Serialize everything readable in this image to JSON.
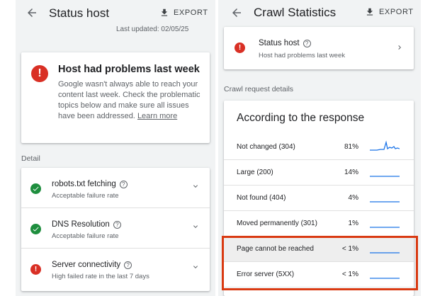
{
  "left": {
    "title": "Status host",
    "export_label": "EXPORT",
    "last_updated": "Last updated: 02/05/25",
    "problem": {
      "title": "Host had problems last week",
      "body": "Google wasn't always able to reach your content last week. Check the problematic topics below and make sure all issues have been addressed.",
      "link": "Learn more"
    },
    "section_label": "Detail",
    "details": [
      {
        "title": "robots.txt fetching",
        "subtitle": "Acceptable failure rate",
        "status": "ok"
      },
      {
        "title": "DNS Resolution",
        "subtitle": "Acceptable failure rate",
        "status": "ok"
      },
      {
        "title": "Server connectivity",
        "subtitle": "High failed rate in the last 7 days",
        "status": "error"
      }
    ]
  },
  "right": {
    "title": "Crawl Statistics",
    "export_label": "EXPORT",
    "status_card": {
      "title": "Status host",
      "subtitle": "Host had problems last week"
    },
    "section_label": "Crawl request details",
    "response_title": "According to the response",
    "responses": [
      {
        "label": "Not changed (304)",
        "pct": "81%"
      },
      {
        "label": "Large (200)",
        "pct": "14%"
      },
      {
        "label": "Not found (404)",
        "pct": "4%"
      },
      {
        "label": "Moved permanently (301)",
        "pct": "1%"
      },
      {
        "label": "Page cannot be reached",
        "pct": "< 1%"
      },
      {
        "label": "Error server (5XX)",
        "pct": "< 1%"
      }
    ]
  },
  "colors": {
    "accent": "#1a73e8",
    "error": "#d93025",
    "ok": "#1e8e3e",
    "highlight_border": "#d93a12",
    "background": "#f1f3f4"
  },
  "icons": [
    "back-arrow-icon",
    "download-icon",
    "error-icon",
    "check-icon",
    "help-icon",
    "chevron-down-icon",
    "chevron-right-icon"
  ]
}
